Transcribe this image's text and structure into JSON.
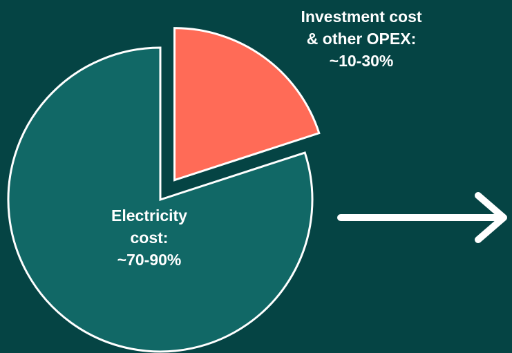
{
  "chart_data": {
    "type": "pie",
    "slices": [
      {
        "label_lines": [
          "Investment cost",
          "& other OPEX:",
          "~10-30%"
        ],
        "value_range": [
          10,
          30
        ],
        "value": 20,
        "color": "#ff6b57",
        "exploded": true
      },
      {
        "label_lines": [
          "Electricity",
          "cost:",
          "~70-90%"
        ],
        "value_range": [
          70,
          90
        ],
        "value": 80,
        "color": "#116866",
        "exploded": false
      }
    ],
    "title": "",
    "legend": "none"
  },
  "colors": {
    "background": "#054444",
    "outline": "#ffffff",
    "arrow": "#ffffff"
  },
  "decorations": {
    "arrow_icon": "right-arrow-icon"
  }
}
